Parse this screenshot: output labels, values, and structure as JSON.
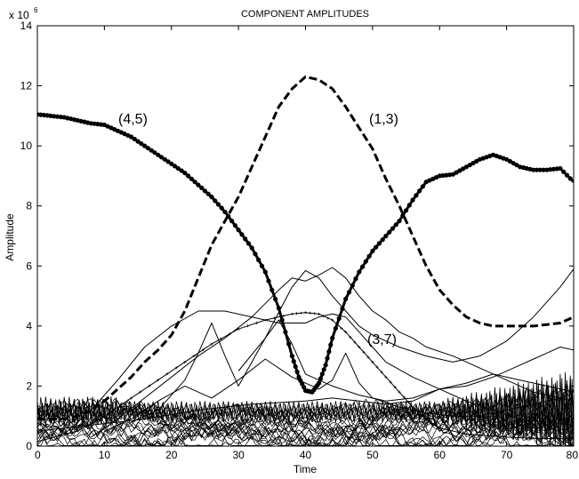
{
  "chart_data": {
    "type": "line",
    "title": "COMPONENT AMPLITUDES",
    "xlabel": "Time",
    "ylabel": "Amplitude",
    "y_multiplier_label": "x 10",
    "y_multiplier_exponent": "6",
    "xlim": [
      0,
      80
    ],
    "ylim": [
      0,
      14
    ],
    "x_ticks": [
      "0",
      "10",
      "20",
      "30",
      "40",
      "50",
      "60",
      "70",
      "80"
    ],
    "y_ticks": [
      "0",
      "2",
      "4",
      "6",
      "8",
      "10",
      "12",
      "14"
    ],
    "grid": false,
    "annotations": [
      "(4,5)",
      "(1,3)",
      "(3,7)"
    ],
    "series": [
      {
        "name": "(4,5)",
        "style": "thick-dotted",
        "x": [
          0,
          2,
          4,
          6,
          8,
          10,
          12,
          14,
          16,
          18,
          20,
          22,
          24,
          26,
          28,
          30,
          32,
          34,
          36,
          38,
          39,
          40,
          41,
          42,
          43,
          44,
          46,
          48,
          50,
          52,
          54,
          56,
          58,
          60,
          62,
          64,
          66,
          68,
          70,
          72,
          74,
          76,
          78,
          80
        ],
        "y": [
          11.05,
          11.0,
          10.95,
          10.85,
          10.75,
          10.7,
          10.5,
          10.3,
          10.0,
          9.7,
          9.4,
          9.1,
          8.7,
          8.3,
          7.8,
          7.2,
          6.6,
          5.8,
          4.6,
          3.0,
          2.3,
          1.85,
          1.8,
          2.1,
          2.7,
          3.6,
          4.9,
          5.8,
          6.5,
          7.0,
          7.5,
          8.2,
          8.8,
          9.0,
          9.05,
          9.3,
          9.55,
          9.7,
          9.55,
          9.3,
          9.2,
          9.2,
          9.25,
          8.8
        ]
      },
      {
        "name": "(1,3)",
        "style": "thick-dashed",
        "x": [
          0,
          4,
          6,
          8,
          10,
          12,
          14,
          16,
          18,
          20,
          22,
          24,
          26,
          28,
          30,
          32,
          34,
          36,
          38,
          40,
          42,
          44,
          46,
          48,
          50,
          52,
          54,
          56,
          58,
          60,
          62,
          64,
          66,
          68,
          70,
          72,
          74,
          76,
          78,
          80
        ],
        "y": [
          0.9,
          0.9,
          1.0,
          1.2,
          1.5,
          1.9,
          2.3,
          2.8,
          3.2,
          3.7,
          4.5,
          5.6,
          6.7,
          7.5,
          8.3,
          9.3,
          10.3,
          11.3,
          11.9,
          12.3,
          12.2,
          11.9,
          11.3,
          10.6,
          9.9,
          8.9,
          8.0,
          7.0,
          6.0,
          5.2,
          4.7,
          4.3,
          4.1,
          4.0,
          4.0,
          4.0,
          4.0,
          4.05,
          4.1,
          4.3
        ]
      },
      {
        "name": "(3,7)",
        "style": "thin-plus",
        "x": [
          0,
          6,
          10,
          14,
          18,
          22,
          26,
          30,
          34,
          38,
          40,
          42,
          44,
          46,
          48,
          50,
          52,
          54,
          56,
          58,
          60,
          64,
          70,
          75,
          80
        ],
        "y": [
          0.15,
          0.5,
          1.0,
          1.6,
          2.2,
          2.8,
          3.4,
          3.9,
          4.2,
          4.4,
          4.45,
          4.4,
          4.2,
          3.8,
          3.3,
          2.8,
          2.3,
          1.8,
          1.3,
          0.9,
          0.6,
          0.4,
          0.3,
          0.25,
          0.25
        ]
      },
      {
        "name": "",
        "style": "thin",
        "x": [
          4,
          8,
          12,
          16,
          20,
          24,
          28,
          32,
          36,
          40,
          42,
          44,
          46,
          48,
          50,
          52,
          56,
          60,
          64,
          68,
          72,
          76,
          80
        ],
        "y": [
          0.4,
          1.2,
          2.2,
          3.3,
          4.0,
          4.5,
          4.5,
          4.3,
          4.1,
          4.1,
          4.3,
          4.4,
          4.3,
          3.8,
          3.3,
          2.8,
          2.3,
          1.9,
          1.5,
          1.2,
          0.9,
          0.8,
          0.7
        ]
      },
      {
        "name": "",
        "style": "thin",
        "x": [
          8,
          12,
          16,
          20,
          24,
          28,
          32,
          36,
          38,
          40,
          42,
          44,
          46,
          48,
          50,
          52,
          54,
          56,
          58,
          62,
          66,
          70,
          74,
          78,
          80
        ],
        "y": [
          0.3,
          0.9,
          1.6,
          2.3,
          3.0,
          3.6,
          4.3,
          5.2,
          5.6,
          5.5,
          5.7,
          5.95,
          5.6,
          5.0,
          4.5,
          4.2,
          3.8,
          3.6,
          3.3,
          3.0,
          2.6,
          2.2,
          1.8,
          1.6,
          1.5
        ]
      },
      {
        "name": "",
        "style": "thin",
        "x": [
          30,
          34,
          38,
          40,
          42,
          44,
          46,
          48,
          50,
          54,
          58,
          62,
          66,
          70,
          74,
          78,
          80
        ],
        "y": [
          2.5,
          3.6,
          5.3,
          5.85,
          5.6,
          5.0,
          4.5,
          4.0,
          3.7,
          3.3,
          3.0,
          2.8,
          3.0,
          3.5,
          4.3,
          5.3,
          5.9
        ]
      },
      {
        "name": "",
        "style": "thin",
        "x": [
          14,
          18,
          20,
          22,
          24,
          26,
          28,
          30,
          32,
          34,
          36,
          38,
          40,
          44,
          48,
          52,
          56,
          60,
          64,
          68,
          72,
          76,
          80
        ],
        "y": [
          0.8,
          1.2,
          1.7,
          2.2,
          3.1,
          4.1,
          3.0,
          2.0,
          2.8,
          3.6,
          4.2,
          3.4,
          2.4,
          2.0,
          1.7,
          1.5,
          1.6,
          1.9,
          2.1,
          2.4,
          2.2,
          2.0,
          1.8
        ]
      },
      {
        "name": "",
        "style": "thin",
        "x": [
          10,
          14,
          18,
          22,
          26,
          30,
          34,
          38,
          42,
          44,
          46,
          48,
          50,
          54,
          58,
          62,
          66,
          70,
          74,
          78,
          80
        ],
        "y": [
          0.5,
          0.9,
          1.5,
          2.0,
          1.6,
          2.2,
          2.9,
          2.3,
          1.9,
          2.2,
          3.1,
          2.1,
          1.6,
          1.3,
          1.1,
          1.0,
          1.0,
          1.2,
          1.4,
          1.6,
          1.5
        ]
      },
      {
        "name": "",
        "style": "thin",
        "x": [
          0,
          8,
          16,
          24,
          32,
          40,
          44,
          48,
          52,
          56,
          60,
          64,
          68,
          72,
          74,
          76,
          78,
          80
        ],
        "y": [
          0.5,
          0.7,
          0.9,
          1.2,
          1.4,
          1.5,
          1.6,
          1.5,
          1.4,
          1.5,
          1.9,
          2.0,
          2.3,
          2.7,
          2.9,
          3.1,
          3.3,
          3.2
        ]
      }
    ]
  }
}
